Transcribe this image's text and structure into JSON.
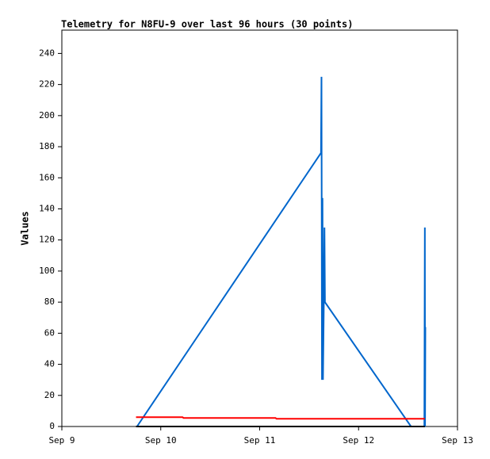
{
  "chart_data": {
    "type": "line",
    "title": "Telemetry for N8FU-9 over last 96 hours (30 points)",
    "y_label": "Values",
    "xlim": [
      9,
      13
    ],
    "xticks": [
      {
        "value": 9,
        "label": "Sep 9"
      },
      {
        "value": 10,
        "label": "Sep 10"
      },
      {
        "value": 11,
        "label": "Sep 11"
      },
      {
        "value": 12,
        "label": "Sep 12"
      },
      {
        "value": 13,
        "label": "Sep 13"
      }
    ],
    "ylim": [
      0,
      255
    ],
    "yticks": [
      0,
      20,
      40,
      60,
      80,
      100,
      120,
      140,
      160,
      180,
      200,
      220,
      240
    ],
    "series": [
      {
        "color": "#0066cc",
        "x": [
          9.76,
          11.62,
          11.625,
          11.63,
          11.635,
          11.64,
          11.65,
          11.655,
          11.66,
          12.53,
          12.665,
          12.67,
          12.672,
          12.675
        ],
        "values": [
          0,
          176,
          225,
          30,
          147,
          30,
          88,
          128,
          80,
          0,
          0,
          128,
          0,
          64
        ]
      },
      {
        "color": "#ff0000",
        "x": [
          9.75,
          10.22,
          10.23,
          11.16,
          11.17,
          12.67
        ],
        "values": [
          6,
          6,
          5.5,
          5.5,
          5,
          5
        ]
      },
      {
        "color": "#000000",
        "x": [
          9.75,
          12.67
        ],
        "values": [
          0,
          0
        ]
      }
    ]
  }
}
